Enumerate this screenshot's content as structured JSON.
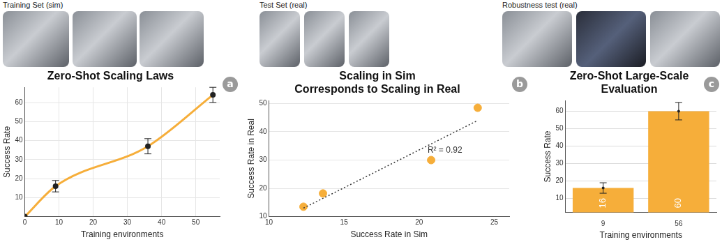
{
  "image_labels": [
    "Training Set (sim)",
    "Test Set (real)",
    "Robustness test (real)"
  ],
  "chart_data": [
    {
      "type": "line",
      "panel": "a",
      "title": "Zero-Shot Scaling Laws",
      "x_label": "Training environments",
      "y_label": "Success Rate",
      "x": [
        0,
        9,
        36,
        55
      ],
      "values": [
        0,
        16,
        37,
        64
      ],
      "errors": [
        0,
        3,
        4,
        4
      ],
      "color": "#f6ae3a",
      "marker": "circle",
      "xlim": [
        0,
        57
      ],
      "xticks": [
        0,
        10,
        20,
        30,
        40,
        50
      ],
      "ylim": [
        0,
        68
      ],
      "yticks": [
        10,
        20,
        30,
        40,
        50,
        60
      ],
      "grid": true
    },
    {
      "type": "scatter",
      "panel": "b",
      "title": [
        "Scaling in Sim",
        "Corresponds to Scaling in Real"
      ],
      "x_label": "Success Rate in Sim",
      "y_label": "Success Rate in Real",
      "x": [
        12.3,
        13.6,
        20.8,
        23.9
      ],
      "values": [
        13.5,
        18.2,
        30,
        48.5
      ],
      "color": "#f6ae3a",
      "marker": "circle",
      "trend_line": {
        "x": [
          12.3,
          23.9
        ],
        "values": [
          13,
          44
        ],
        "line_style": "dotted"
      },
      "annotation": "R² = 0.92",
      "xlim": [
        10,
        26
      ],
      "xticks": [
        10,
        15,
        20,
        25
      ],
      "ylim": [
        10,
        51
      ],
      "yticks": [
        10,
        20,
        30,
        40,
        50
      ],
      "grid": true
    },
    {
      "type": "bar",
      "panel": "c",
      "title": [
        "Zero-Shot Large-Scale",
        "Evaluation"
      ],
      "x_label": "Training environments",
      "y_label": "Success Rate",
      "categories": [
        "9",
        "56"
      ],
      "values": [
        16,
        60
      ],
      "errors": [
        3,
        5
      ],
      "color": "#f6ae3a",
      "data_labels": true,
      "ylim": [
        2,
        66
      ],
      "yticks": [
        10,
        20,
        30,
        40,
        50,
        60
      ],
      "grid": true
    }
  ]
}
